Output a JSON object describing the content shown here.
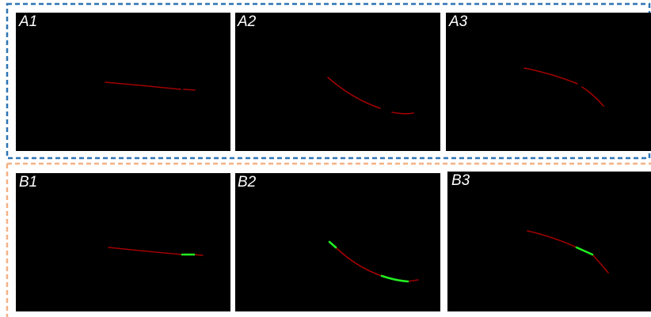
{
  "panels": [
    {
      "label": "A1"
    },
    {
      "label": "A2"
    },
    {
      "label": "A3"
    },
    {
      "label": "B1"
    },
    {
      "label": "B2"
    },
    {
      "label": "B3"
    }
  ]
}
